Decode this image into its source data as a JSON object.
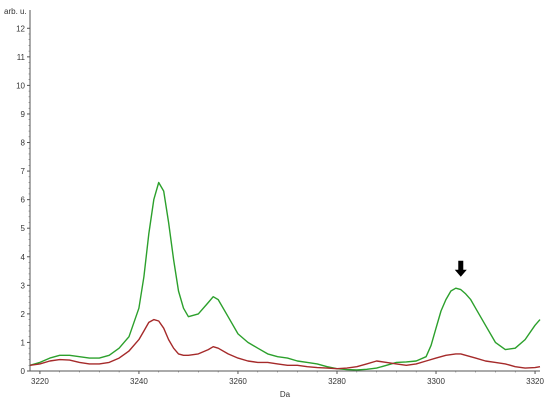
{
  "chart_data": {
    "type": "line",
    "ylabel": "arb. u.",
    "xlabel": "Da",
    "xlim": [
      3218,
      3321
    ],
    "ylim": [
      0,
      12.5
    ],
    "x_ticks": [
      3220,
      3240,
      3260,
      3280,
      3300,
      3320
    ],
    "y_ticks": [
      0,
      1,
      2,
      3,
      4,
      5,
      6,
      7,
      8,
      9,
      10,
      11,
      12
    ],
    "grid": false,
    "annotation": {
      "type": "arrow-down",
      "x": 3305,
      "y": 3.3
    },
    "series": [
      {
        "color": "#2ca02c",
        "x": [
          3218,
          3220,
          3222,
          3224,
          3226,
          3228,
          3230,
          3232,
          3234,
          3236,
          3238,
          3240,
          3241,
          3242,
          3243,
          3244,
          3245,
          3246,
          3247,
          3248,
          3249,
          3250,
          3252,
          3254,
          3255,
          3256,
          3258,
          3260,
          3262,
          3264,
          3266,
          3268,
          3270,
          3272,
          3274,
          3276,
          3278,
          3280,
          3282,
          3284,
          3286,
          3288,
          3290,
          3292,
          3294,
          3296,
          3298,
          3299,
          3300,
          3301,
          3302,
          3303,
          3304,
          3305,
          3306,
          3307,
          3308,
          3310,
          3312,
          3314,
          3316,
          3318,
          3320,
          3321
        ],
        "y": [
          0.2,
          0.3,
          0.45,
          0.55,
          0.55,
          0.5,
          0.45,
          0.45,
          0.55,
          0.8,
          1.2,
          2.2,
          3.3,
          4.8,
          6.0,
          6.6,
          6.3,
          5.2,
          3.9,
          2.8,
          2.2,
          1.9,
          2.0,
          2.4,
          2.6,
          2.5,
          1.9,
          1.3,
          1.0,
          0.8,
          0.6,
          0.5,
          0.45,
          0.35,
          0.3,
          0.25,
          0.15,
          0.08,
          0.05,
          0.04,
          0.06,
          0.1,
          0.2,
          0.3,
          0.32,
          0.35,
          0.5,
          0.9,
          1.5,
          2.1,
          2.5,
          2.8,
          2.9,
          2.85,
          2.7,
          2.5,
          2.2,
          1.6,
          1.0,
          0.75,
          0.8,
          1.1,
          1.6,
          1.8
        ]
      },
      {
        "color": "#a52a2a",
        "x": [
          3218,
          3220,
          3222,
          3224,
          3226,
          3228,
          3230,
          3232,
          3234,
          3236,
          3238,
          3240,
          3241,
          3242,
          3243,
          3244,
          3245,
          3246,
          3247,
          3248,
          3249,
          3250,
          3252,
          3254,
          3255,
          3256,
          3258,
          3260,
          3262,
          3264,
          3266,
          3268,
          3270,
          3272,
          3274,
          3276,
          3278,
          3280,
          3282,
          3284,
          3286,
          3288,
          3290,
          3292,
          3294,
          3296,
          3298,
          3300,
          3302,
          3304,
          3305,
          3306,
          3308,
          3310,
          3312,
          3314,
          3316,
          3318,
          3320,
          3321
        ],
        "y": [
          0.2,
          0.25,
          0.35,
          0.4,
          0.38,
          0.3,
          0.25,
          0.25,
          0.3,
          0.45,
          0.7,
          1.1,
          1.4,
          1.7,
          1.8,
          1.75,
          1.5,
          1.1,
          0.8,
          0.6,
          0.55,
          0.55,
          0.6,
          0.75,
          0.85,
          0.8,
          0.6,
          0.45,
          0.35,
          0.3,
          0.3,
          0.25,
          0.2,
          0.2,
          0.15,
          0.12,
          0.1,
          0.08,
          0.1,
          0.15,
          0.25,
          0.35,
          0.3,
          0.25,
          0.2,
          0.25,
          0.35,
          0.45,
          0.55,
          0.6,
          0.6,
          0.55,
          0.45,
          0.35,
          0.3,
          0.25,
          0.15,
          0.1,
          0.12,
          0.15
        ]
      }
    ]
  }
}
